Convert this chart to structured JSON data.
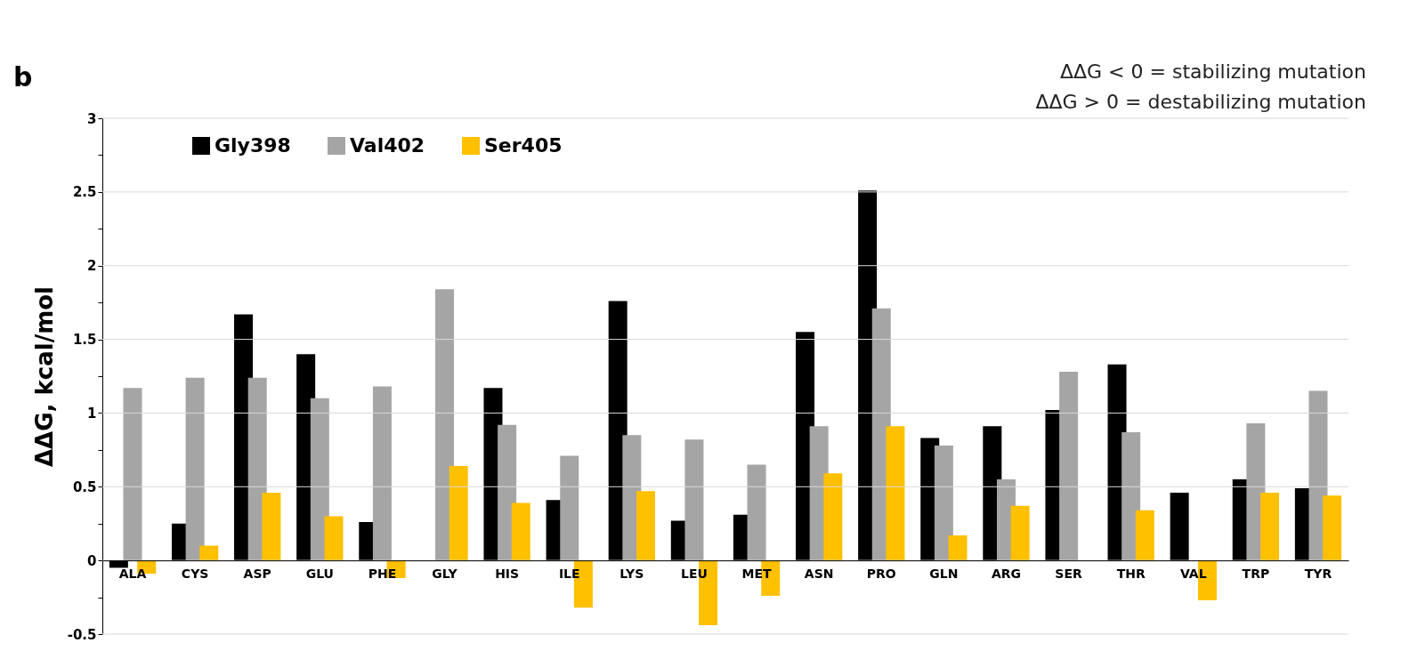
{
  "chart_data": {
    "type": "bar",
    "ylabel": "ΔΔG, kcal/mol",
    "annotations": [
      "b",
      "ΔΔG < 0 = stabilizing mutation",
      "ΔΔG > 0 = destabilizing mutation"
    ],
    "categories": [
      "ALA",
      "CYS",
      "ASP",
      "GLU",
      "PHE",
      "GLY",
      "HIS",
      "ILE",
      "LYS",
      "LEU",
      "MET",
      "ASN",
      "PRO",
      "GLN",
      "ARG",
      "SER",
      "THR",
      "VAL",
      "TRP",
      "TYR"
    ],
    "series": [
      {
        "name": "Gly398",
        "color": "#000000",
        "values": [
          -0.05,
          0.25,
          1.67,
          1.4,
          0.26,
          null,
          1.17,
          0.41,
          1.76,
          0.27,
          0.31,
          1.55,
          2.51,
          0.83,
          0.91,
          1.02,
          1.33,
          0.46,
          0.55,
          0.49
        ]
      },
      {
        "name": "Val402",
        "color": "#a5a5a5",
        "values": [
          1.17,
          1.24,
          1.24,
          1.1,
          1.18,
          1.84,
          0.92,
          0.71,
          0.85,
          0.82,
          0.65,
          0.91,
          1.71,
          0.78,
          0.55,
          1.28,
          0.87,
          null,
          0.93,
          1.15
        ]
      },
      {
        "name": "Ser405",
        "color": "#ffc000",
        "values": [
          -0.09,
          0.1,
          0.46,
          0.3,
          -0.12,
          0.64,
          0.39,
          -0.32,
          0.47,
          -0.44,
          -0.24,
          0.59,
          0.91,
          0.17,
          0.37,
          null,
          0.34,
          -0.27,
          0.46,
          0.44
        ]
      }
    ],
    "ylim": [
      -0.5,
      3
    ],
    "yticks": [
      -0.5,
      {
        "value": -0.25,
        "label": null
      },
      0,
      {
        "value": 0.25,
        "label": null
      },
      0.5,
      {
        "value": 0.75,
        "label": null
      },
      1,
      {
        "value": 1.25,
        "label": null
      },
      1.5,
      {
        "value": 1.75,
        "label": null
      },
      2,
      {
        "value": 2.25,
        "label": null
      },
      2.5,
      {
        "value": 2.75,
        "label": null
      },
      3
    ],
    "grid": "y",
    "legend": "top left"
  }
}
